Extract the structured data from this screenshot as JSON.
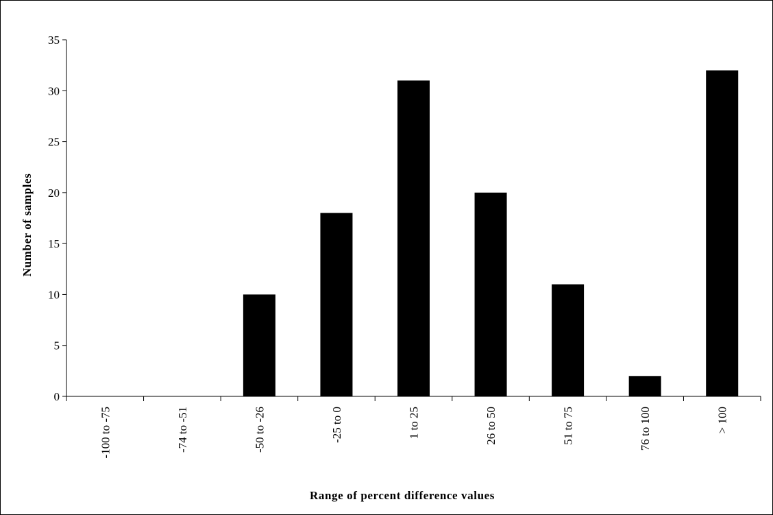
{
  "chart_data": {
    "type": "bar",
    "title": "",
    "xlabel": "Range of percent difference values",
    "ylabel": "Number of samples",
    "categories": [
      "-100 to -75",
      "-74 to -51",
      "-50 to -26",
      "-25 to 0",
      "1 to 25",
      "26 to 50",
      "51 to 75",
      "76 to 100",
      "> 100"
    ],
    "values": [
      0,
      0,
      10,
      18,
      31,
      20,
      11,
      2,
      32
    ],
    "ylim": [
      0,
      35
    ],
    "yticks": [
      0,
      5,
      10,
      15,
      20,
      25,
      30,
      35
    ],
    "grid": false,
    "legend": "none",
    "bar_color": "#000000"
  }
}
